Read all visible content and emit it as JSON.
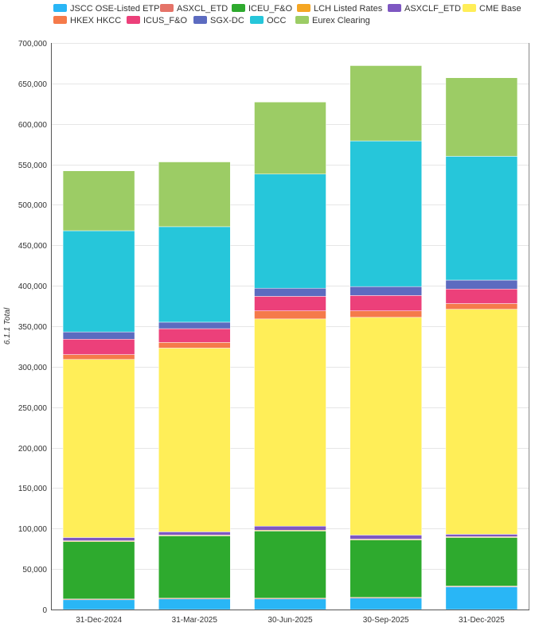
{
  "chart_data": {
    "type": "bar",
    "stacked": true,
    "title": "",
    "xlabel": "",
    "ylabel": "6.1.1 Total",
    "ylim": [
      0,
      700000
    ],
    "yticks": [
      "0",
      "50,000",
      "100,000",
      "150,000",
      "200,000",
      "250,000",
      "300,000",
      "350,000",
      "400,000",
      "450,000",
      "500,000",
      "550,000",
      "600,000",
      "650,000",
      "700,000"
    ],
    "categories": [
      "31-Dec-2024",
      "31-Mar-2025",
      "30-Jun-2025",
      "30-Sep-2025",
      "31-Dec-2025"
    ],
    "legend_position": "top",
    "series": [
      {
        "name": "JSCC OSE-Listed ETP",
        "color": "#29b6f6",
        "values": [
          12000,
          13000,
          13000,
          14000,
          28000
        ]
      },
      {
        "name": "ASXCL_ETD",
        "color": "#e57368",
        "values": [
          1000,
          1000,
          1000,
          1000,
          1000
        ]
      },
      {
        "name": "ICEU_F&O",
        "color": "#2eaa2e",
        "values": [
          71000,
          77000,
          83000,
          71000,
          60000
        ]
      },
      {
        "name": "LCH Listed Rates",
        "color": "#f5a623",
        "values": [
          1000,
          1000,
          1000,
          1000,
          1000
        ]
      },
      {
        "name": "ASXCLF_ETD",
        "color": "#7e57c2",
        "values": [
          4000,
          4000,
          5000,
          5000,
          3000
        ]
      },
      {
        "name": "CME Base",
        "color": "#ffee58",
        "values": [
          220000,
          227000,
          256000,
          269000,
          278000
        ]
      },
      {
        "name": "HKEX HKCC",
        "color": "#f57a4a",
        "values": [
          6000,
          7000,
          10000,
          8000,
          7000
        ]
      },
      {
        "name": "ICUS_F&O",
        "color": "#ec407a",
        "values": [
          19000,
          17000,
          18000,
          19000,
          18000
        ]
      },
      {
        "name": "SGX-DC",
        "color": "#5c6bc0",
        "values": [
          9000,
          8000,
          10000,
          11000,
          11000
        ]
      },
      {
        "name": "OCC",
        "color": "#26c6da",
        "values": [
          125000,
          118000,
          141000,
          180000,
          153000
        ]
      },
      {
        "name": "Eurex Clearing",
        "color": "#9ccc65",
        "values": [
          74000,
          80000,
          89000,
          93000,
          97000
        ]
      }
    ]
  },
  "legend_rows": [
    [
      {
        "label": "JSCC OSE-Listed ETP",
        "color": "#29b6f6"
      },
      {
        "label": "ASXCL_ETD",
        "color": "#e57368"
      },
      {
        "label": "ICEU_F&O",
        "color": "#2eaa2e"
      },
      {
        "label": "LCH Listed Rates",
        "color": "#f5a623"
      },
      {
        "label": "ASXCLF_ETD",
        "color": "#7e57c2"
      },
      {
        "label": "CME Base",
        "color": "#ffee58"
      }
    ],
    [
      {
        "label": "HKEX HKCC",
        "color": "#f57a4a"
      },
      {
        "label": "ICUS_F&O",
        "color": "#ec407a"
      },
      {
        "label": "SGX-DC",
        "color": "#5c6bc0"
      },
      {
        "label": "OCC",
        "color": "#26c6da"
      },
      {
        "label": "Eurex Clearing",
        "color": "#9ccc65"
      }
    ]
  ]
}
